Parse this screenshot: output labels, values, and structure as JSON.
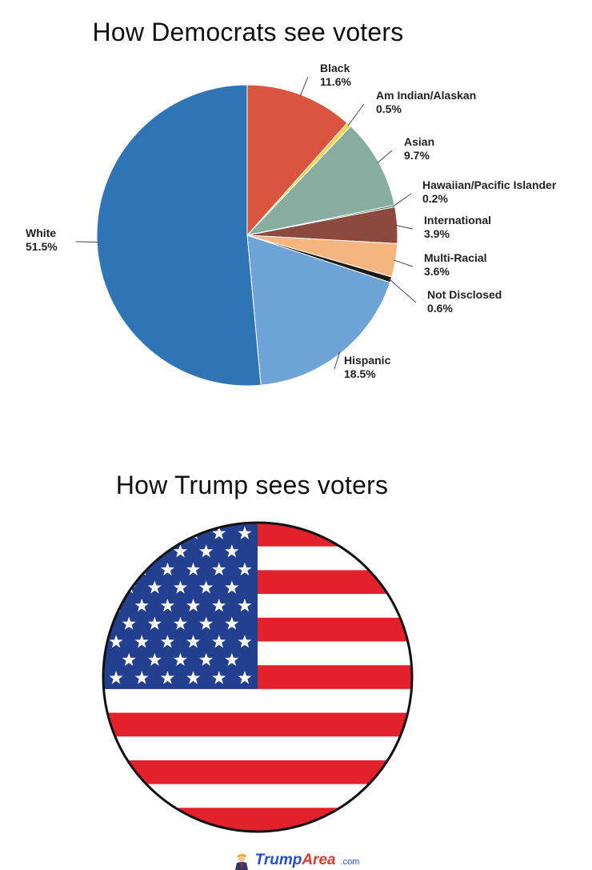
{
  "titles": {
    "democrats": "How Democrats see voters",
    "trump": "How Trump sees voters"
  },
  "chart_data": {
    "type": "pie",
    "title": "How Democrats see voters",
    "slices": [
      {
        "label": "Black",
        "value": 11.6,
        "display": "11.6%",
        "color": "#d9553f"
      },
      {
        "label": "Am Indian/Alaskan",
        "value": 0.5,
        "display": "0.5%",
        "color": "#f3d64a"
      },
      {
        "label": "Asian",
        "value": 9.7,
        "display": "9.7%",
        "color": "#86ada0"
      },
      {
        "label": "Hawaiian/Pacific Islander",
        "value": 0.2,
        "display": "0.2%",
        "color": "#3d6e64"
      },
      {
        "label": "International",
        "value": 3.9,
        "display": "3.9%",
        "color": "#8b4a3d"
      },
      {
        "label": "Multi-Racial",
        "value": 3.6,
        "display": "3.6%",
        "color": "#f4b57e"
      },
      {
        "label": "Not Disclosed",
        "value": 0.6,
        "display": "0.6%",
        "color": "#1a1a1a"
      },
      {
        "label": "Hispanic",
        "value": 18.5,
        "display": "18.5%",
        "color": "#6ea3d8"
      },
      {
        "label": "White",
        "value": 51.5,
        "display": "51.5%",
        "color": "#2f74b5"
      }
    ]
  },
  "flag": {
    "stripe_red": "#e3212b",
    "stripe_white": "#ffffff",
    "canton": "#233f8f",
    "stars": "white"
  },
  "footer": {
    "brand_main": "Trump",
    "brand_accent": "Area",
    "brand_domain": ".com"
  }
}
